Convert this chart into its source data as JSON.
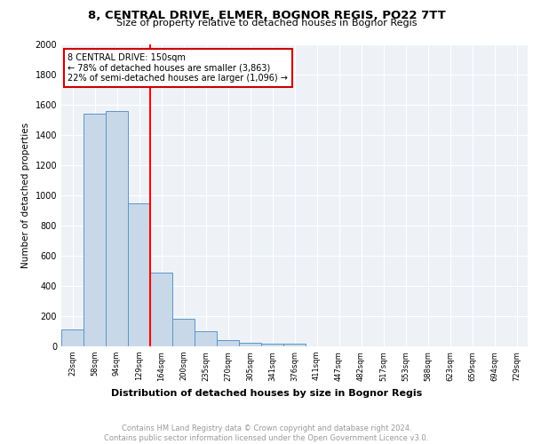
{
  "title": "8, CENTRAL DRIVE, ELMER, BOGNOR REGIS, PO22 7TT",
  "subtitle": "Size of property relative to detached houses in Bognor Regis",
  "xlabel": "Distribution of detached houses by size in Bognor Regis",
  "ylabel": "Number of detached properties",
  "bin_labels": [
    "23sqm",
    "58sqm",
    "94sqm",
    "129sqm",
    "164sqm",
    "200sqm",
    "235sqm",
    "270sqm",
    "305sqm",
    "341sqm",
    "376sqm",
    "411sqm",
    "447sqm",
    "482sqm",
    "517sqm",
    "553sqm",
    "588sqm",
    "623sqm",
    "659sqm",
    "694sqm",
    "729sqm"
  ],
  "bar_values": [
    110,
    1540,
    1560,
    950,
    490,
    185,
    100,
    40,
    25,
    18,
    18,
    0,
    0,
    0,
    0,
    0,
    0,
    0,
    0,
    0,
    0
  ],
  "bar_color": "#c8d8e8",
  "bar_edge_color": "#5a96c8",
  "red_line_x": 4.0,
  "annotation_text": "8 CENTRAL DRIVE: 150sqm\n← 78% of detached houses are smaller (3,863)\n22% of semi-detached houses are larger (1,096) →",
  "annotation_box_color": "#ffffff",
  "annotation_box_edge": "#cc0000",
  "ylim": [
    0,
    2000
  ],
  "yticks": [
    0,
    200,
    400,
    600,
    800,
    1000,
    1200,
    1400,
    1600,
    1800,
    2000
  ],
  "footer_line1": "Contains HM Land Registry data © Crown copyright and database right 2024.",
  "footer_line2": "Contains public sector information licensed under the Open Government Licence v3.0.",
  "plot_bg_color": "#eef2f7",
  "grid_color": "#ffffff"
}
